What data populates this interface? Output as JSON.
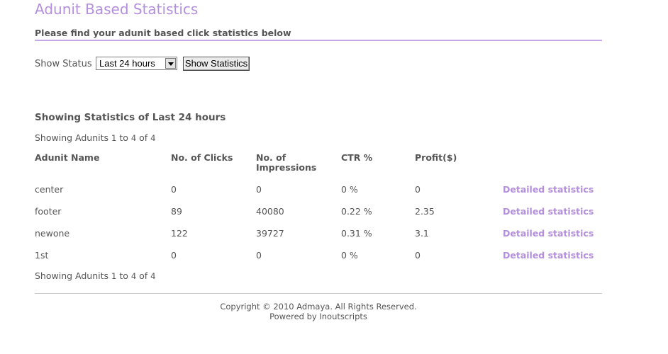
{
  "page": {
    "title": "Adunit Based Statistics",
    "subtitle": "Please find your adunit based click statistics below"
  },
  "filter": {
    "label": "Show Status",
    "selected": "Last 24 hours",
    "button_label": "Show Statistics"
  },
  "stats": {
    "heading": "Showing Statistics of Last 24 hours",
    "paging": {
      "prefix": "Showing Adunits ",
      "from": "1",
      "to_word": " to ",
      "to": "4",
      "of_word": " of ",
      "total": "4"
    },
    "columns": {
      "name": "Adunit Name",
      "clicks": "No. of Clicks",
      "impressions_line1": "No. of",
      "impressions_line2": "Impressions",
      "ctr": "CTR %",
      "profit": "Profit($)"
    },
    "rows": [
      {
        "name": "center",
        "clicks": "0",
        "impressions": "0",
        "ctr": "0 %",
        "profit": "0",
        "link": "Detailed statistics"
      },
      {
        "name": "footer",
        "clicks": "89",
        "impressions": "40080",
        "ctr": "0.22 %",
        "profit": "2.35",
        "link": "Detailed statistics"
      },
      {
        "name": "newone",
        "clicks": "122",
        "impressions": "39727",
        "ctr": "0.31 %",
        "profit": "3.1",
        "link": "Detailed statistics"
      },
      {
        "name": "1st",
        "clicks": "0",
        "impressions": "0",
        "ctr": "0 %",
        "profit": "0",
        "link": "Detailed statistics"
      }
    ]
  },
  "footer": {
    "copyright": "Copyright © 2010 Admaya. All Rights Reserved.",
    "powered_prefix": "Powered by ",
    "powered_name": "Inoutscripts"
  },
  "colors": {
    "accent": "#b48fdc",
    "text": "#555555"
  }
}
